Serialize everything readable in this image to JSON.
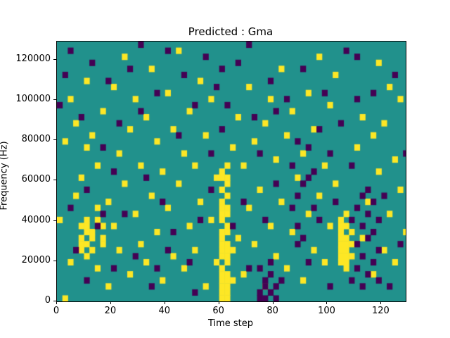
{
  "chart_data": {
    "type": "heatmap",
    "title": "Predicted : Gma",
    "xlabel": "Time step",
    "ylabel": "Frequency (Hz)",
    "xticks": [
      0,
      20,
      40,
      60,
      80,
      100,
      120
    ],
    "yticks": [
      0,
      20000,
      40000,
      60000,
      80000,
      100000,
      120000
    ],
    "xlim": [
      0,
      129
    ],
    "ylim": [
      0,
      129000
    ],
    "cell_t": 2,
    "cell_f": 3000,
    "colormap": "viridis",
    "colors": {
      "mid": "#21918c",
      "high": "#fde725",
      "low": "#440154",
      "frame": "#000000"
    },
    "value_meaning": {
      "mid": 0.5,
      "high": 1.0,
      "low": 0.0
    },
    "legend_position": "none",
    "grid": false,
    "yellow_cells": [
      [
        30,
        0
      ],
      [
        30,
        1
      ],
      [
        30,
        2
      ],
      [
        30,
        3
      ],
      [
        30,
        4
      ],
      [
        30,
        5
      ],
      [
        30,
        7
      ],
      [
        30,
        8
      ],
      [
        30,
        9
      ],
      [
        30,
        10
      ],
      [
        30,
        11
      ],
      [
        30,
        13
      ],
      [
        30,
        14
      ],
      [
        30,
        15
      ],
      [
        30,
        16
      ],
      [
        30,
        18
      ],
      [
        30,
        20
      ],
      [
        30,
        21
      ],
      [
        31,
        0
      ],
      [
        31,
        1
      ],
      [
        31,
        2
      ],
      [
        31,
        3
      ],
      [
        31,
        4
      ],
      [
        31,
        6
      ],
      [
        31,
        7
      ],
      [
        31,
        8
      ],
      [
        31,
        9
      ],
      [
        31,
        11
      ],
      [
        31,
        12
      ],
      [
        31,
        14
      ],
      [
        31,
        15
      ],
      [
        31,
        17
      ],
      [
        31,
        19
      ],
      [
        31,
        20
      ],
      [
        31,
        22
      ],
      [
        32,
        3
      ],
      [
        32,
        8
      ],
      [
        52,
        6
      ],
      [
        52,
        7
      ],
      [
        52,
        8
      ],
      [
        52,
        9
      ],
      [
        52,
        10
      ],
      [
        52,
        11
      ],
      [
        52,
        12
      ],
      [
        52,
        13
      ],
      [
        53,
        5
      ],
      [
        53,
        6
      ],
      [
        53,
        7
      ],
      [
        53,
        8
      ],
      [
        53,
        9
      ],
      [
        53,
        10
      ],
      [
        53,
        12
      ],
      [
        53,
        14
      ],
      [
        54,
        7
      ],
      [
        54,
        9
      ],
      [
        54,
        11
      ],
      [
        4,
        8
      ],
      [
        4,
        9
      ],
      [
        4,
        10
      ],
      [
        4,
        12
      ],
      [
        5,
        7
      ],
      [
        5,
        9
      ],
      [
        5,
        11
      ],
      [
        5,
        12
      ],
      [
        5,
        13
      ],
      [
        6,
        8
      ],
      [
        6,
        10
      ],
      [
        6,
        11
      ],
      [
        7,
        13
      ],
      [
        7,
        15
      ],
      [
        8,
        9
      ],
      [
        8,
        10
      ],
      [
        8,
        12
      ],
      [
        0,
        13
      ],
      [
        1,
        0
      ],
      [
        1,
        26
      ],
      [
        2,
        6
      ],
      [
        2,
        33
      ],
      [
        3,
        17
      ],
      [
        3,
        29
      ],
      [
        4,
        20
      ],
      [
        5,
        25
      ],
      [
        5,
        36
      ],
      [
        6,
        27
      ],
      [
        7,
        5
      ],
      [
        7,
        22
      ],
      [
        8,
        31
      ],
      [
        9,
        2
      ],
      [
        9,
        16
      ],
      [
        10,
        12
      ],
      [
        10,
        35
      ],
      [
        11,
        8
      ],
      [
        11,
        24
      ],
      [
        12,
        19
      ],
      [
        12,
        40
      ],
      [
        13,
        4
      ],
      [
        13,
        28
      ],
      [
        14,
        14
      ],
      [
        14,
        33
      ],
      [
        15,
        9
      ],
      [
        15,
        22
      ],
      [
        16,
        6
      ],
      [
        16,
        30
      ],
      [
        17,
        17
      ],
      [
        17,
        38
      ],
      [
        18,
        11
      ],
      [
        18,
        26
      ],
      [
        19,
        3
      ],
      [
        19,
        21
      ],
      [
        20,
        15
      ],
      [
        20,
        34
      ],
      [
        21,
        7
      ],
      [
        21,
        28
      ],
      [
        22,
        19
      ],
      [
        22,
        41
      ],
      [
        23,
        5
      ],
      [
        23,
        24
      ],
      [
        24,
        12
      ],
      [
        24,
        31
      ],
      [
        25,
        8
      ],
      [
        25,
        22
      ],
      [
        26,
        16
      ],
      [
        26,
        36
      ],
      [
        27,
        2
      ],
      [
        27,
        27
      ],
      [
        28,
        13
      ],
      [
        28,
        33
      ],
      [
        29,
        6
      ],
      [
        29,
        20
      ],
      [
        32,
        25
      ],
      [
        33,
        10
      ],
      [
        33,
        30
      ],
      [
        34,
        4
      ],
      [
        34,
        22
      ],
      [
        35,
        15
      ],
      [
        35,
        35
      ],
      [
        36,
        9
      ],
      [
        36,
        26
      ],
      [
        37,
        18
      ],
      [
        38,
        2
      ],
      [
        38,
        29
      ],
      [
        39,
        12
      ],
      [
        39,
        33
      ],
      [
        40,
        7
      ],
      [
        40,
        23
      ],
      [
        41,
        16
      ],
      [
        41,
        38
      ],
      [
        42,
        5
      ],
      [
        42,
        27
      ],
      [
        43,
        11
      ],
      [
        43,
        31
      ],
      [
        44,
        20
      ],
      [
        45,
        3
      ],
      [
        45,
        24
      ],
      [
        46,
        14
      ],
      [
        46,
        34
      ],
      [
        47,
        8
      ],
      [
        47,
        28
      ],
      [
        48,
        17
      ],
      [
        48,
        40
      ],
      [
        49,
        6
      ],
      [
        49,
        22
      ],
      [
        50,
        12
      ],
      [
        50,
        32
      ],
      [
        51,
        19
      ],
      [
        51,
        37
      ],
      [
        55,
        25
      ],
      [
        56,
        10
      ],
      [
        56,
        30
      ],
      [
        57,
        16
      ],
      [
        58,
        4
      ],
      [
        58,
        27
      ],
      [
        59,
        21
      ],
      [
        59,
        39
      ],
      [
        60,
        8
      ],
      [
        60,
        29
      ],
      [
        61,
        14
      ],
      [
        61,
        35
      ],
      [
        62,
        6
      ],
      [
        62,
        23
      ],
      [
        63,
        18
      ],
      [
        63,
        33
      ],
      [
        64,
        11
      ]
    ],
    "purple_cells": [
      [
        37,
        0
      ],
      [
        37,
        1
      ],
      [
        38,
        0
      ],
      [
        38,
        2
      ],
      [
        38,
        3
      ],
      [
        39,
        1
      ],
      [
        39,
        4
      ],
      [
        40,
        0
      ],
      [
        40,
        2
      ],
      [
        37,
        5
      ],
      [
        39,
        6
      ],
      [
        54,
        3
      ],
      [
        54,
        13
      ],
      [
        55,
        5
      ],
      [
        55,
        9
      ],
      [
        55,
        15
      ],
      [
        56,
        2
      ],
      [
        56,
        7
      ],
      [
        56,
        12
      ],
      [
        56,
        17
      ],
      [
        57,
        4
      ],
      [
        57,
        10
      ],
      [
        57,
        14
      ],
      [
        57,
        18
      ],
      [
        58,
        6
      ],
      [
        58,
        11
      ],
      [
        58,
        16
      ],
      [
        59,
        3
      ],
      [
        59,
        8
      ],
      [
        59,
        13
      ],
      [
        0,
        32
      ],
      [
        1,
        37
      ],
      [
        2,
        15
      ],
      [
        2,
        41
      ],
      [
        3,
        8
      ],
      [
        4,
        30
      ],
      [
        5,
        18
      ],
      [
        6,
        39
      ],
      [
        7,
        12
      ],
      [
        8,
        25
      ],
      [
        9,
        36
      ],
      [
        10,
        5
      ],
      [
        11,
        29
      ],
      [
        12,
        14
      ],
      [
        13,
        38
      ],
      [
        14,
        7
      ],
      [
        15,
        31
      ],
      [
        16,
        20
      ],
      [
        17,
        2
      ],
      [
        18,
        34
      ],
      [
        19,
        16
      ],
      [
        20,
        41
      ],
      [
        21,
        11
      ],
      [
        22,
        27
      ],
      [
        23,
        37
      ],
      [
        24,
        6
      ],
      [
        25,
        32
      ],
      [
        26,
        13
      ],
      [
        27,
        40
      ],
      [
        28,
        18
      ],
      [
        29,
        35
      ],
      [
        30,
        28
      ],
      [
        31,
        32
      ],
      [
        32,
        12
      ],
      [
        33,
        39
      ],
      [
        34,
        16
      ],
      [
        35,
        5
      ],
      [
        36,
        30
      ],
      [
        37,
        24
      ],
      [
        38,
        13
      ],
      [
        39,
        36
      ],
      [
        40,
        19
      ],
      [
        41,
        3
      ],
      [
        42,
        33
      ],
      [
        43,
        15
      ],
      [
        44,
        26
      ],
      [
        44,
        9
      ],
      [
        45,
        38
      ],
      [
        46,
        6
      ],
      [
        47,
        21
      ],
      [
        48,
        13
      ],
      [
        49,
        34
      ],
      [
        50,
        2
      ],
      [
        51,
        16
      ],
      [
        52,
        29
      ],
      [
        53,
        41
      ],
      [
        54,
        22
      ],
      [
        55,
        33
      ],
      [
        60,
        17
      ],
      [
        61,
        2
      ],
      [
        62,
        37
      ],
      [
        63,
        9
      ],
      [
        64,
        24
      ],
      [
        10,
        21
      ],
      [
        20,
        8
      ],
      [
        30,
        38
      ],
      [
        40,
        31
      ],
      [
        50,
        24
      ],
      [
        5,
        3
      ],
      [
        15,
        42
      ],
      [
        25,
        1
      ],
      [
        35,
        42
      ],
      [
        45,
        10
      ],
      [
        55,
        40
      ],
      [
        8,
        14
      ],
      [
        18,
        5
      ],
      [
        28,
        24
      ],
      [
        48,
        28
      ],
      [
        58,
        34
      ],
      [
        44,
        17
      ],
      [
        46,
        25
      ],
      [
        43,
        22
      ],
      [
        45,
        19
      ],
      [
        47,
        15
      ],
      [
        44,
        12
      ],
      [
        46,
        20
      ]
    ]
  }
}
